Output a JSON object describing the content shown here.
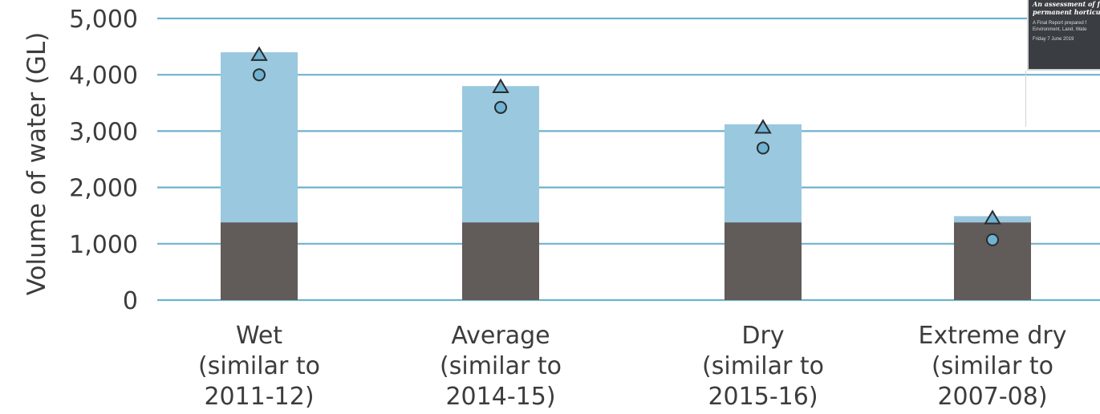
{
  "chart_data": {
    "type": "bar",
    "stacked": true,
    "ylabel": "Volume of water (GL)",
    "ylim": [
      0,
      5000
    ],
    "yticks": [
      0,
      1000,
      2000,
      3000,
      4000,
      5000
    ],
    "ytick_labels": [
      "0",
      "1,000",
      "2,000",
      "3,000",
      "4,000",
      "5,000"
    ],
    "grid": true,
    "categories": [
      [
        "Wet",
        "(similar to",
        "2011-12)"
      ],
      [
        "Average",
        "(similar to",
        "2014-15)"
      ],
      [
        "Dry",
        "(similar to",
        "2015-16)"
      ],
      [
        "Extreme dry",
        "(similar to",
        "2007-08)"
      ]
    ],
    "series": [
      {
        "values": [
          1380,
          1380,
          1380,
          1380
        ],
        "color": "#615b5a"
      },
      {
        "values": [
          3020,
          2420,
          1740,
          110
        ],
        "color": "#9ac8df"
      }
    ],
    "markers": [
      {
        "shape": "triangle",
        "values": [
          4350,
          3780,
          3060,
          1450
        ],
        "color": "#6fb2d2"
      },
      {
        "shape": "circle",
        "values": [
          4000,
          3420,
          2700,
          1070
        ],
        "color": "#6fb2d2"
      }
    ],
    "colors": {
      "grid": "#6fb2cc",
      "text": "#3c3c3c"
    }
  },
  "inset": {
    "title_lines": [
      "An assessment of fut",
      "permanent horticult"
    ],
    "sub_lines": [
      "A Final Report prepared f",
      "Environment, Land, Wate"
    ],
    "date": "Friday 7 June 2019"
  }
}
